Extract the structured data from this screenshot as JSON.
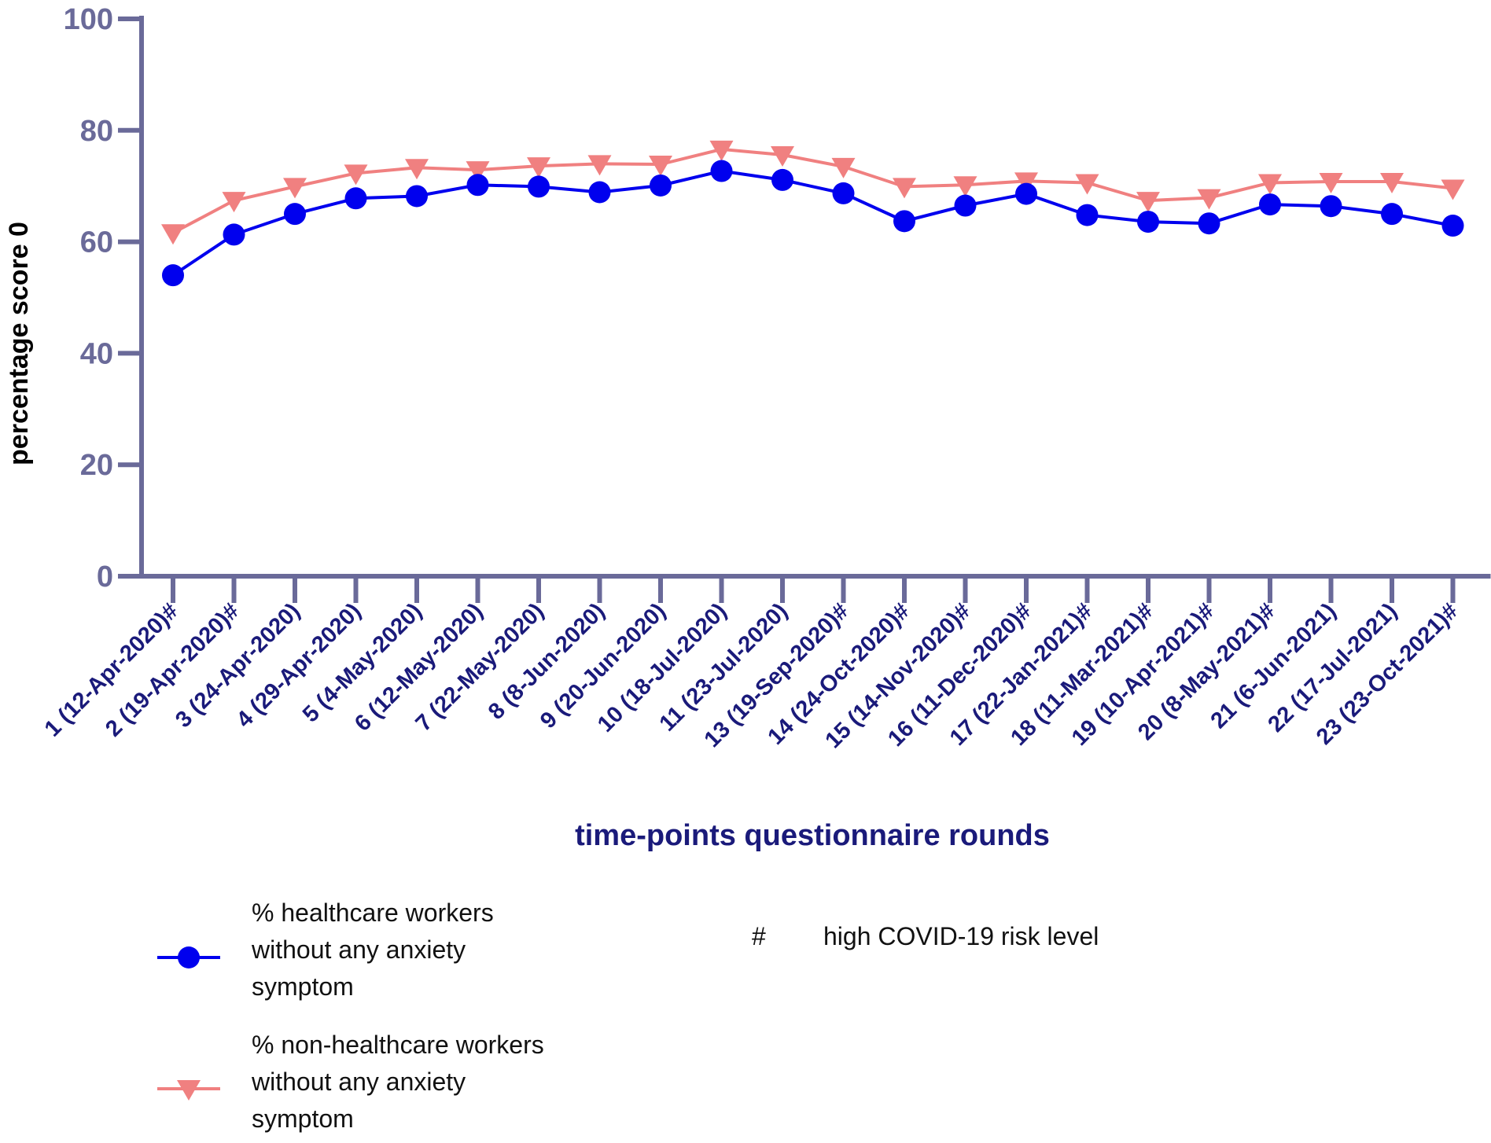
{
  "chart_data": {
    "type": "line",
    "xlabel": "time-points questionnaire rounds",
    "ylabel": "percentage score 0",
    "ylim": [
      0,
      100
    ],
    "yticks": [
      "0",
      "20",
      "40",
      "60",
      "80",
      "100"
    ],
    "categories": [
      "1 (12-Apr-2020)#",
      "2 (19-Apr-2020)#",
      "3 (24-Apr-2020)",
      "4 (29-Apr-2020)",
      "5 (4-May-2020)",
      "6 (12-May-2020)",
      "7 (22-May-2020)",
      "8 (8-Jun-2020)",
      "9 (20-Jun-2020)",
      "10 (18-Jul-2020)",
      "11 (23-Jul-2020)",
      "13 (19-Sep-2020)#",
      "14 (24-Oct-2020)#",
      "15 (14-Nov-2020)#",
      "16 (11-Dec-2020)#",
      "17 (22-Jan-2021)#",
      "18 (11-Mar-2021)#",
      "19 (10-Apr-2021)#",
      "20 (8-May-2021)#",
      "21 (6-Jun-2021)",
      "22 (17-Jul-2021)",
      "23 (23-Oct-2021)#"
    ],
    "series": [
      {
        "name": "% healthcare workers without any anxiety symptom",
        "name_lines": [
          "% healthcare workers",
          "without any anxiety",
          "symptom"
        ],
        "marker": "circle",
        "color": "#0000ee",
        "values": [
          54.0,
          61.3,
          65.0,
          67.8,
          68.2,
          70.2,
          69.9,
          68.9,
          70.1,
          72.7,
          71.1,
          68.7,
          63.7,
          66.5,
          68.6,
          64.8,
          63.6,
          63.3,
          66.7,
          66.4,
          65.0,
          62.9
        ]
      },
      {
        "name": "% non-healthcare workers without any anxiety symptom",
        "name_lines": [
          "% non-healthcare workers",
          "without any anxiety",
          "symptom"
        ],
        "marker": "triangle-down",
        "color": "#f08080",
        "values": [
          61.6,
          67.4,
          69.9,
          72.3,
          73.3,
          72.9,
          73.6,
          74.0,
          73.9,
          76.6,
          75.6,
          73.5,
          69.9,
          70.2,
          70.9,
          70.6,
          67.4,
          67.9,
          70.6,
          70.8,
          70.8,
          69.6
        ]
      }
    ],
    "annotation": {
      "symbol": "#",
      "text": "high COVID-19 risk level"
    },
    "axis_color": "#6a6a99",
    "grid": false,
    "legend_position": "bottom-left"
  }
}
